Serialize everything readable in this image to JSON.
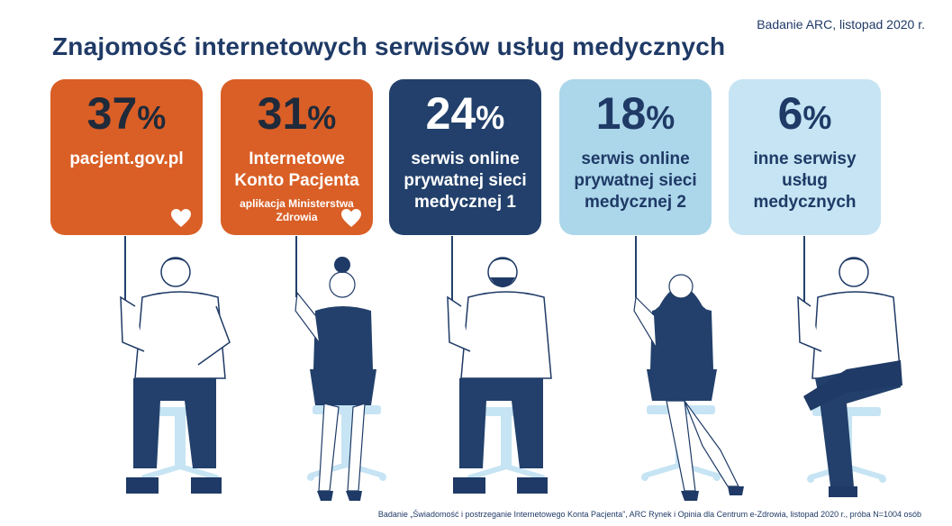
{
  "header": {
    "source_top": "Badanie ARC, listopad 2020 r.",
    "title": "Znajomość internetowych serwisów usług medycznych"
  },
  "footer": {
    "source_bottom": "Badanie „Świadomość i postrzeganie Internetowego Konta Pacjenta”, ARC Rynek i Opinia dla Centrum e-Zdrowia, listopad 2020 r., próba N=1004 osób"
  },
  "colors": {
    "orange": "#d95f26",
    "navy": "#22406b",
    "light_blue": "#acd6ea",
    "lighter_blue": "#c6e4f3",
    "text_dark": "#1f3a66"
  },
  "chart_data": {
    "type": "bar",
    "title": "Znajomość internetowych serwisów usług medycznych",
    "unit": "%",
    "categories": [
      "pacjent.gov.pl",
      "Internetowe Konto Pacjenta",
      "serwis online prywatnej sieci medycznej 1",
      "serwis online prywatnej sieci medycznej 2",
      "inne serwisy usług medycznych"
    ],
    "values": [
      37,
      31,
      24,
      18,
      6
    ],
    "ylim": [
      0,
      100
    ],
    "grid": false,
    "legend": "none"
  },
  "cards": [
    {
      "value": "37",
      "symbol": "%",
      "label_lines": [
        "pacjent.gov.pl"
      ],
      "sub": "",
      "heart": true,
      "bg": "#d95f26",
      "fg": "#1f2a3a",
      "label_fg": "#ffffff"
    },
    {
      "value": "31",
      "symbol": "%",
      "label_lines": [
        "Internetowe",
        "Konto Pacjenta"
      ],
      "sub_lines": [
        "aplikacja Ministerstwa",
        "Zdrowia"
      ],
      "heart": true,
      "bg": "#d95f26",
      "fg": "#1f2a3a",
      "label_fg": "#ffffff"
    },
    {
      "value": "24",
      "symbol": "%",
      "label_lines": [
        "serwis online",
        "prywatnej sieci",
        "medycznej 1"
      ],
      "heart": false,
      "bg": "#22406b",
      "fg": "#ffffff",
      "label_fg": "#ffffff"
    },
    {
      "value": "18",
      "symbol": "%",
      "label_lines": [
        "serwis online",
        "prywatnej sieci",
        "medycznej 2"
      ],
      "heart": false,
      "bg": "#acd6ea",
      "fg": "#1f3a66",
      "label_fg": "#1f3a66"
    },
    {
      "value": "6",
      "symbol": "%",
      "label_lines": [
        "inne serwisy",
        "usług",
        "medycznych"
      ],
      "heart": false,
      "bg": "#c6e4f3",
      "fg": "#1f3a66",
      "label_fg": "#1f3a66"
    }
  ]
}
